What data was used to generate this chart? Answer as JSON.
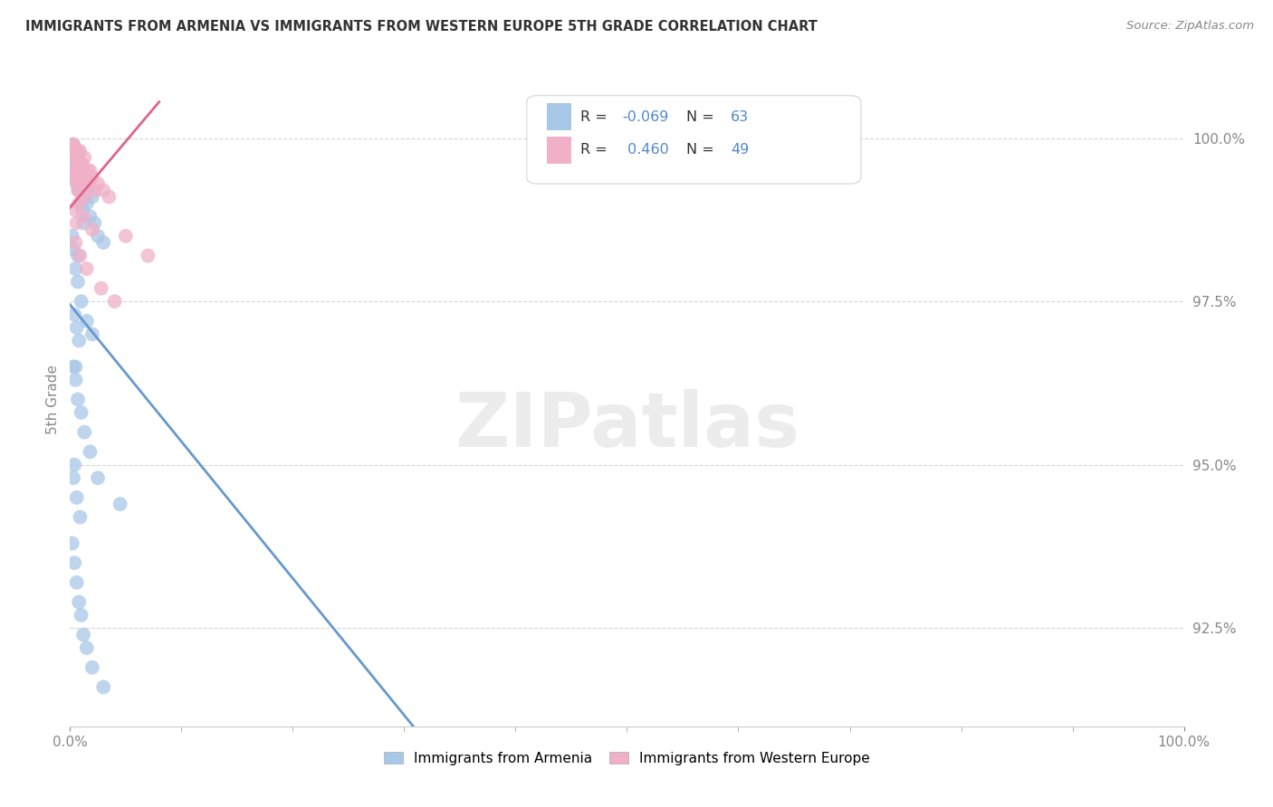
{
  "title": "IMMIGRANTS FROM ARMENIA VS IMMIGRANTS FROM WESTERN EUROPE 5TH GRADE CORRELATION CHART",
  "source": "Source: ZipAtlas.com",
  "xlabel_blue": "Immigrants from Armenia",
  "xlabel_pink": "Immigrants from Western Europe",
  "ylabel": "5th Grade",
  "R_blue": -0.069,
  "N_blue": 63,
  "R_pink": 0.46,
  "N_pink": 49,
  "xlim": [
    0.0,
    100.0
  ],
  "ylim": [
    91.0,
    101.0
  ],
  "yticks": [
    92.5,
    95.0,
    97.5,
    100.0
  ],
  "xticks_minor": [
    10,
    20,
    30,
    40,
    50,
    60,
    70,
    80,
    90
  ],
  "blue_color": "#a8c8e8",
  "pink_color": "#f0b0c8",
  "blue_line_color": "#6699cc",
  "pink_line_color": "#dd6688",
  "blue_scatter_x": [
    0.2,
    0.3,
    0.4,
    0.5,
    0.6,
    0.7,
    0.8,
    0.9,
    1.0,
    1.1,
    1.2,
    1.3,
    1.4,
    1.5,
    1.8,
    2.0,
    2.2,
    2.5,
    3.0,
    0.2,
    0.3,
    0.4,
    0.5,
    0.6,
    0.7,
    0.8,
    0.9,
    1.0,
    1.1,
    1.2,
    0.2,
    0.3,
    0.5,
    0.7,
    1.0,
    1.5,
    2.0,
    0.4,
    0.6,
    0.8,
    0.3,
    0.5,
    0.7,
    1.0,
    1.3,
    1.8,
    2.5,
    0.4,
    0.6,
    0.9,
    0.2,
    0.4,
    0.6,
    0.8,
    1.0,
    1.2,
    1.5,
    2.0,
    3.0,
    0.3,
    0.5,
    0.7,
    4.5
  ],
  "blue_scatter_y": [
    99.6,
    99.4,
    99.5,
    99.7,
    99.3,
    99.8,
    99.2,
    99.5,
    99.6,
    99.4,
    99.1,
    99.3,
    99.2,
    99.0,
    98.8,
    99.1,
    98.7,
    98.5,
    98.4,
    99.9,
    99.8,
    99.7,
    99.5,
    99.6,
    99.4,
    99.3,
    99.2,
    99.0,
    98.9,
    98.7,
    98.5,
    98.3,
    98.0,
    97.8,
    97.5,
    97.2,
    97.0,
    97.3,
    97.1,
    96.9,
    96.5,
    96.3,
    96.0,
    95.8,
    95.5,
    95.2,
    94.8,
    95.0,
    94.5,
    94.2,
    93.8,
    93.5,
    93.2,
    92.9,
    92.7,
    92.4,
    92.2,
    91.9,
    91.6,
    94.8,
    96.5,
    98.2,
    94.4
  ],
  "pink_scatter_x": [
    0.3,
    0.5,
    0.7,
    0.9,
    1.1,
    1.3,
    1.6,
    2.0,
    2.5,
    3.0,
    0.4,
    0.6,
    0.8,
    1.0,
    1.2,
    1.5,
    1.8,
    2.2,
    3.5,
    0.3,
    0.5,
    0.7,
    0.9,
    1.1,
    1.4,
    1.7,
    0.4,
    0.6,
    0.8,
    1.0,
    0.3,
    0.5,
    0.7,
    1.0,
    1.3,
    0.4,
    0.6,
    5.0,
    7.0,
    0.8,
    1.2,
    2.0,
    0.5,
    0.9,
    1.5,
    2.8,
    4.0,
    0.3,
    0.7
  ],
  "pink_scatter_y": [
    99.9,
    99.8,
    99.7,
    99.8,
    99.6,
    99.7,
    99.5,
    99.4,
    99.3,
    99.2,
    99.8,
    99.7,
    99.6,
    99.5,
    99.4,
    99.3,
    99.5,
    99.2,
    99.1,
    99.9,
    99.8,
    99.7,
    99.6,
    99.5,
    99.4,
    99.3,
    99.6,
    99.5,
    99.4,
    99.3,
    99.5,
    99.4,
    99.3,
    99.2,
    99.1,
    98.9,
    98.7,
    98.5,
    98.2,
    99.0,
    98.8,
    98.6,
    98.4,
    98.2,
    98.0,
    97.7,
    97.5,
    99.4,
    99.2
  ],
  "watermark": "ZIPatlas",
  "background_color": "#ffffff",
  "grid_color": "#cccccc",
  "yaxis_label_color": "#5588cc",
  "title_color": "#333333",
  "source_color": "#888888"
}
